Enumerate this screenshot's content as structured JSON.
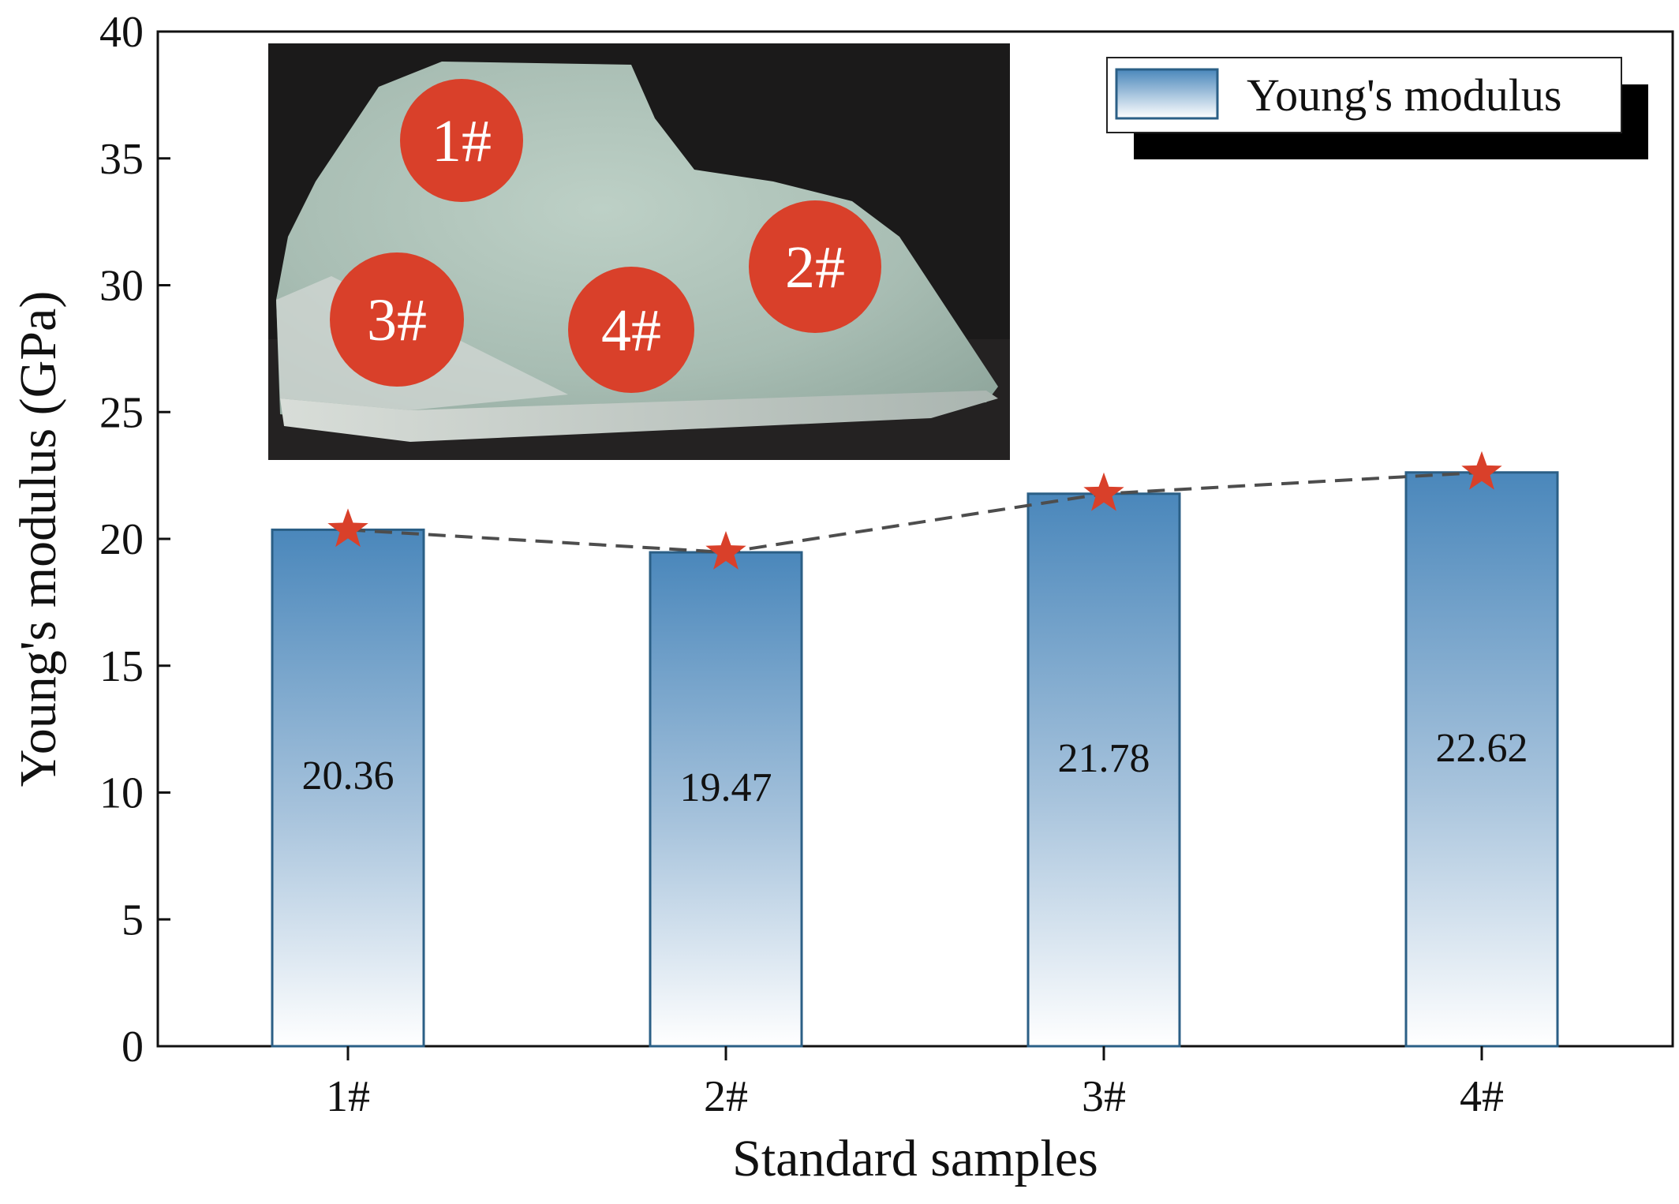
{
  "chart_data": {
    "type": "bar",
    "title": "",
    "xlabel": "Standard samples",
    "ylabel": "Young's modulus (GPa)",
    "categories": [
      "1#",
      "2#",
      "3#",
      "4#"
    ],
    "series": [
      {
        "name": "Young's modulus",
        "values": [
          20.36,
          19.47,
          21.78,
          22.62
        ]
      }
    ],
    "data_labels": [
      "20.36",
      "19.47",
      "21.78",
      "22.62"
    ],
    "ylim": [
      0,
      40
    ],
    "yticks": [
      0,
      5,
      10,
      15,
      20,
      25,
      30,
      35,
      40
    ],
    "grid": false,
    "legend_position": "top-right",
    "trend_line": {
      "style": "dashed",
      "marker": "star"
    },
    "colors": {
      "bar_top": "#4a87bb",
      "bar_bottom": "#ffffff",
      "bar_edge": "#2b5f86",
      "marker": "#d9402a",
      "trend_line": "#4d4d4d"
    },
    "inset_photo": {
      "description": "rock specimen with sampling locations",
      "labels": [
        "1#",
        "2#",
        "3#",
        "4#"
      ],
      "marker_color": "#d9402a"
    }
  }
}
